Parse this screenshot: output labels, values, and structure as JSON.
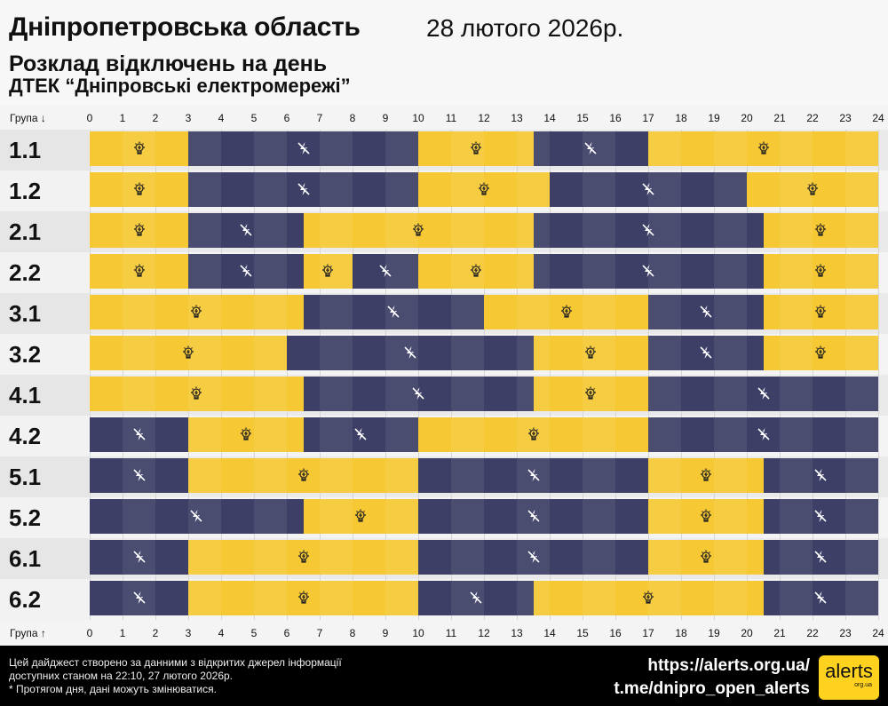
{
  "header": {
    "region": "Дніпропетровська область",
    "date": "28 лютого 2026р.",
    "subtitle1": "Розклад відключень на день",
    "subtitle2": "ДТЕК “Дніпровські електромережі”"
  },
  "axis": {
    "top_label": "Група ↓",
    "bottom_label": "Група ↑",
    "ticks": [
      "0",
      "1",
      "2",
      "3",
      "4",
      "5",
      "6",
      "7",
      "8",
      "9",
      "10",
      "11",
      "12",
      "13",
      "14",
      "15",
      "16",
      "17",
      "18",
      "19",
      "20",
      "21",
      "22",
      "23",
      "24"
    ]
  },
  "colors": {
    "power_on": "#f6c934",
    "power_off": "#3d3f66"
  },
  "chart_data": {
    "type": "timeline",
    "xlim": [
      0,
      24
    ],
    "xlabel": "",
    "icons": {
      "on": "lightbulb-icon",
      "off": "no-power-icon"
    },
    "groups": [
      {
        "name": "1.1",
        "segments": [
          [
            0,
            3,
            "on"
          ],
          [
            3,
            10,
            "off"
          ],
          [
            10,
            13.5,
            "on"
          ],
          [
            13.5,
            17,
            "off"
          ],
          [
            17,
            24,
            "on"
          ]
        ]
      },
      {
        "name": "1.2",
        "segments": [
          [
            0,
            3,
            "on"
          ],
          [
            3,
            10,
            "off"
          ],
          [
            10,
            14,
            "on"
          ],
          [
            14,
            20,
            "off"
          ],
          [
            20,
            24,
            "on"
          ]
        ]
      },
      {
        "name": "2.1",
        "segments": [
          [
            0,
            3,
            "on"
          ],
          [
            3,
            6.5,
            "off"
          ],
          [
            6.5,
            13.5,
            "on"
          ],
          [
            13.5,
            20.5,
            "off"
          ],
          [
            20.5,
            24,
            "on"
          ]
        ]
      },
      {
        "name": "2.2",
        "segments": [
          [
            0,
            3,
            "on"
          ],
          [
            3,
            6.5,
            "off"
          ],
          [
            6.5,
            8,
            "on"
          ],
          [
            8,
            10,
            "off"
          ],
          [
            10,
            13.5,
            "on"
          ],
          [
            13.5,
            20.5,
            "off"
          ],
          [
            20.5,
            24,
            "on"
          ]
        ]
      },
      {
        "name": "3.1",
        "segments": [
          [
            0,
            6.5,
            "on"
          ],
          [
            6.5,
            12,
            "off"
          ],
          [
            12,
            17,
            "on"
          ],
          [
            17,
            20.5,
            "off"
          ],
          [
            20.5,
            24,
            "on"
          ]
        ]
      },
      {
        "name": "3.2",
        "segments": [
          [
            0,
            6,
            "on"
          ],
          [
            6,
            13.5,
            "off"
          ],
          [
            13.5,
            17,
            "on"
          ],
          [
            17,
            20.5,
            "off"
          ],
          [
            20.5,
            24,
            "on"
          ]
        ]
      },
      {
        "name": "4.1",
        "segments": [
          [
            0,
            6.5,
            "on"
          ],
          [
            6.5,
            13.5,
            "off"
          ],
          [
            13.5,
            17,
            "on"
          ],
          [
            17,
            24,
            "off"
          ]
        ]
      },
      {
        "name": "4.2",
        "segments": [
          [
            0,
            3,
            "off"
          ],
          [
            3,
            6.5,
            "on"
          ],
          [
            6.5,
            10,
            "off"
          ],
          [
            10,
            17,
            "on"
          ],
          [
            17,
            24,
            "off"
          ]
        ]
      },
      {
        "name": "5.1",
        "segments": [
          [
            0,
            3,
            "off"
          ],
          [
            3,
            10,
            "on"
          ],
          [
            10,
            17,
            "off"
          ],
          [
            17,
            20.5,
            "on"
          ],
          [
            20.5,
            24,
            "off"
          ]
        ]
      },
      {
        "name": "5.2",
        "segments": [
          [
            0,
            6.5,
            "off"
          ],
          [
            6.5,
            10,
            "on"
          ],
          [
            10,
            17,
            "off"
          ],
          [
            17,
            20.5,
            "on"
          ],
          [
            20.5,
            24,
            "off"
          ]
        ]
      },
      {
        "name": "6.1",
        "segments": [
          [
            0,
            3,
            "off"
          ],
          [
            3,
            10,
            "on"
          ],
          [
            10,
            17,
            "off"
          ],
          [
            17,
            20.5,
            "on"
          ],
          [
            20.5,
            24,
            "off"
          ]
        ]
      },
      {
        "name": "6.2",
        "segments": [
          [
            0,
            3,
            "off"
          ],
          [
            3,
            10,
            "on"
          ],
          [
            10,
            13.5,
            "off"
          ],
          [
            13.5,
            20.5,
            "on"
          ],
          [
            20.5,
            24,
            "off"
          ]
        ]
      }
    ]
  },
  "footer": {
    "note1": "Цей дайджест створено за данними з відкритих джерел інформації",
    "note2": "доступних станом на 22:10, 27 лютого 2026р.",
    "note3": "* Протягом дня, дані можуть змінюватися.",
    "link1": "https://alerts.org.ua/",
    "link2": "t.me/dnipro_open_alerts",
    "logo_text": "alerts",
    "logo_sub": "org.ua"
  }
}
